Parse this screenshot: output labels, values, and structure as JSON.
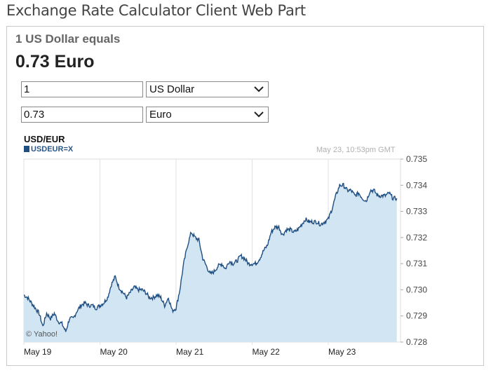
{
  "page": {
    "title": "Exchange Rate Calculator Client Web Part"
  },
  "calculator": {
    "equals_label": "1 US Dollar equals",
    "result": "0.73 Euro",
    "from": {
      "amount": "1",
      "currency": "US Dollar"
    },
    "to": {
      "amount": "0.73",
      "currency": "Euro"
    }
  },
  "chart_data": {
    "type": "area",
    "title": "USD/EUR",
    "legend": [
      "USDEUR=X"
    ],
    "timestamp": "May 23, 10:53pm GMT",
    "watermark": "© Yahoo!",
    "xlabel": "",
    "ylabel": "",
    "x_ticks": [
      "May 19",
      "May 20",
      "May 21",
      "May 22",
      "May 23"
    ],
    "x_range": [
      0,
      4.92
    ],
    "y_ticks": [
      "0.735",
      "0.734",
      "0.733",
      "0.732",
      "0.731",
      "0.730",
      "0.729",
      "0.728"
    ],
    "ylim": [
      0.728,
      0.735
    ],
    "grid": "vertical",
    "colors": {
      "line": "#1f4f82",
      "fill": "#d2e5f2"
    },
    "series": [
      {
        "x": [
          0.0,
          0.05,
          0.1,
          0.15,
          0.2,
          0.25,
          0.3,
          0.35,
          0.4,
          0.45,
          0.5,
          0.55,
          0.6,
          0.65,
          0.7,
          0.75,
          0.8,
          0.85,
          0.9,
          0.95,
          1.0,
          1.05,
          1.1,
          1.15,
          1.2,
          1.25,
          1.3,
          1.35,
          1.4,
          1.45,
          1.5,
          1.55,
          1.6,
          1.65,
          1.7,
          1.75,
          1.8,
          1.85,
          1.9,
          1.95,
          2.0,
          2.05,
          2.1,
          2.15,
          2.2,
          2.25,
          2.3,
          2.35,
          2.4,
          2.45,
          2.5,
          2.55,
          2.6,
          2.65,
          2.7,
          2.75,
          2.8,
          2.85,
          2.9,
          2.95,
          3.0,
          3.05,
          3.1,
          3.15,
          3.2,
          3.25,
          3.3,
          3.35,
          3.4,
          3.45,
          3.5,
          3.55,
          3.6,
          3.65,
          3.7,
          3.75,
          3.8,
          3.85,
          3.9,
          3.95,
          4.0,
          4.05,
          4.1,
          4.15,
          4.2,
          4.25,
          4.3,
          4.35,
          4.4,
          4.45,
          4.5,
          4.55,
          4.6,
          4.65,
          4.7,
          4.75,
          4.8,
          4.85,
          4.9
        ],
        "y": [
          0.7298,
          0.7297,
          0.7295,
          0.7293,
          0.7291,
          0.7286,
          0.7291,
          0.7289,
          0.7291,
          0.7288,
          0.7287,
          0.7284,
          0.7289,
          0.7289,
          0.7292,
          0.7294,
          0.7295,
          0.7294,
          0.7294,
          0.7293,
          0.7294,
          0.7295,
          0.7297,
          0.7302,
          0.7305,
          0.7301,
          0.7299,
          0.7297,
          0.7299,
          0.7301,
          0.73,
          0.73,
          0.7299,
          0.7297,
          0.7297,
          0.7298,
          0.7297,
          0.7294,
          0.7297,
          0.7292,
          0.7293,
          0.73,
          0.731,
          0.7317,
          0.7322,
          0.732,
          0.7319,
          0.7312,
          0.7309,
          0.7306,
          0.7307,
          0.7309,
          0.731,
          0.7308,
          0.7311,
          0.731,
          0.7311,
          0.7313,
          0.7312,
          0.731,
          0.731,
          0.731,
          0.7312,
          0.7315,
          0.7317,
          0.7322,
          0.7324,
          0.7324,
          0.7321,
          0.7323,
          0.7323,
          0.7322,
          0.7323,
          0.7325,
          0.7327,
          0.7326,
          0.7326,
          0.7326,
          0.7325,
          0.7326,
          0.7327,
          0.7331,
          0.7336,
          0.734,
          0.734,
          0.7338,
          0.7338,
          0.7336,
          0.7337,
          0.7335,
          0.7334,
          0.7338,
          0.7338,
          0.7336,
          0.7336,
          0.7336,
          0.7337,
          0.7335,
          0.7335
        ]
      }
    ]
  }
}
